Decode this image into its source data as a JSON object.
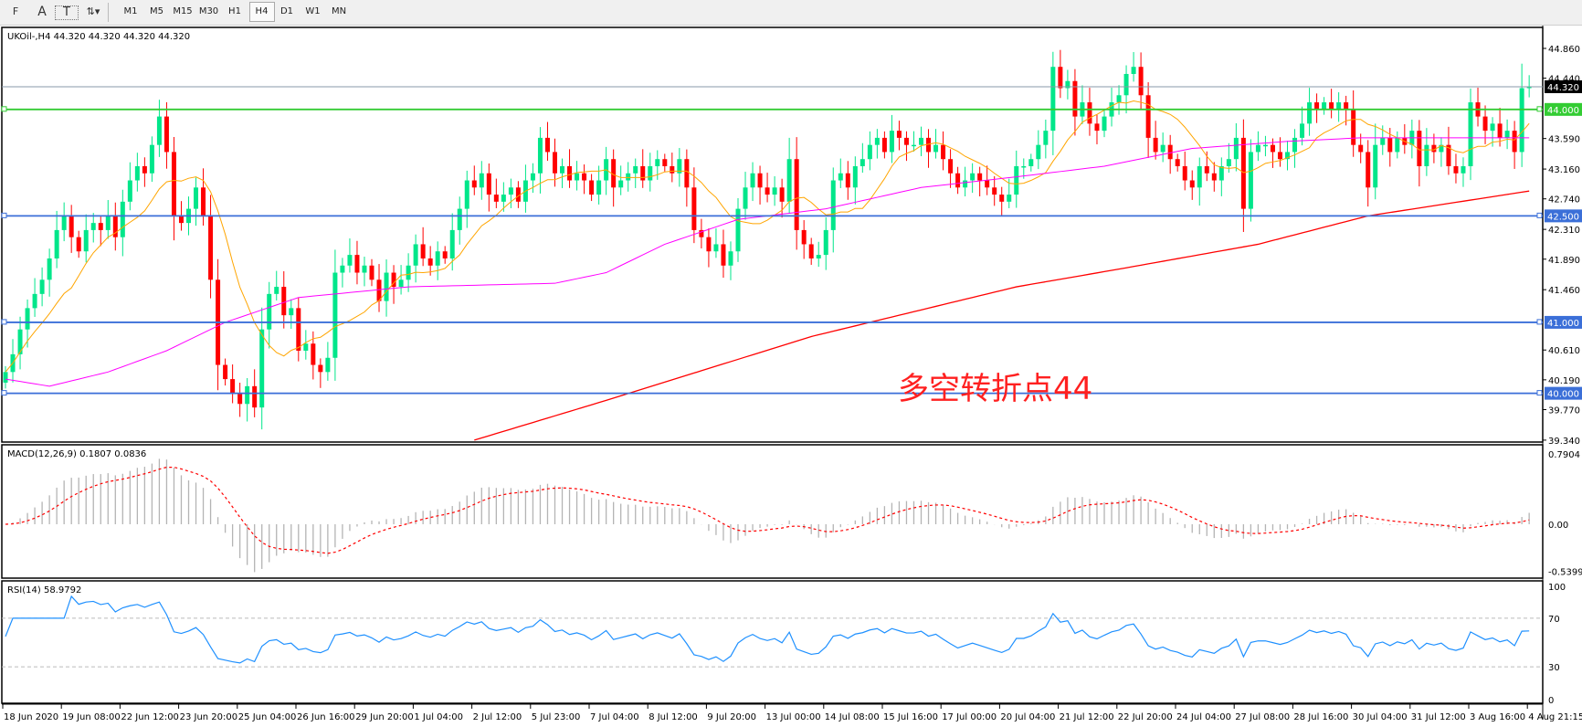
{
  "toolbar": {
    "tools": [
      {
        "icon": "grid-f-icon",
        "label": "F"
      },
      {
        "icon": "text-icon",
        "label": "A"
      },
      {
        "icon": "text-label-icon",
        "label": "T"
      },
      {
        "icon": "arrows-icon",
        "label": "▾"
      }
    ],
    "timeframes": [
      "M1",
      "M5",
      "M15",
      "M30",
      "H1",
      "H4",
      "D1",
      "W1",
      "MN"
    ],
    "active_timeframe": "H4"
  },
  "main": {
    "title": "UKOil-,H4  44.320 44.320 44.320 44.320",
    "symbol": "UKOil-",
    "period": "H4",
    "price_axis_labels": [
      "44.860",
      "44.440",
      "43.590",
      "43.160",
      "42.740",
      "42.310",
      "41.890",
      "41.460",
      "40.610",
      "40.190",
      "39.770",
      "39.340"
    ],
    "bid": {
      "value": 44.32,
      "label": "44.320",
      "color": "#000000"
    },
    "levels": [
      {
        "value": 44.0,
        "label": "44.000",
        "color": "#33cc33"
      },
      {
        "value": 42.5,
        "label": "42.500",
        "color": "#3b6fd8"
      },
      {
        "value": 41.0,
        "label": "41.000",
        "color": "#3b6fd8"
      },
      {
        "value": 40.0,
        "label": "40.000",
        "color": "#3b6fd8"
      }
    ],
    "annotation": "多空转折点44",
    "annotation_color": "#ff2020",
    "colors": {
      "bull": "#00e68a",
      "bear": "#ff0000",
      "ma_fast": "#ffa500",
      "ma_mid": "#ff00ff",
      "ma_slow": "#ff0000"
    }
  },
  "chart_data": {
    "type": "candlestick",
    "ylim": [
      39.34,
      44.86
    ],
    "closes": [
      40.3,
      40.55,
      40.9,
      41.2,
      41.4,
      41.6,
      41.9,
      42.3,
      42.5,
      42.2,
      42.0,
      42.3,
      42.4,
      42.3,
      42.5,
      42.2,
      42.7,
      43.0,
      43.2,
      43.1,
      43.5,
      43.9,
      43.4,
      42.5,
      42.4,
      42.6,
      42.9,
      42.5,
      41.6,
      40.4,
      40.2,
      40.0,
      39.85,
      40.1,
      39.8,
      40.9,
      41.4,
      41.5,
      41.1,
      41.2,
      40.6,
      40.7,
      40.4,
      40.3,
      40.5,
      41.7,
      41.8,
      41.95,
      41.7,
      41.8,
      41.6,
      41.3,
      41.7,
      41.5,
      41.6,
      41.8,
      42.1,
      41.9,
      41.8,
      42.0,
      41.9,
      42.3,
      42.6,
      43.0,
      42.9,
      43.1,
      42.8,
      42.7,
      42.8,
      42.9,
      42.7,
      43.0,
      43.1,
      43.6,
      43.4,
      43.1,
      43.2,
      43.0,
      43.1,
      43.0,
      42.8,
      43.0,
      43.3,
      42.9,
      43.0,
      43.1,
      43.2,
      43.0,
      43.2,
      43.3,
      43.2,
      43.1,
      43.3,
      42.9,
      42.3,
      42.2,
      42.0,
      42.1,
      41.8,
      42.0,
      42.6,
      42.9,
      43.1,
      42.9,
      42.8,
      42.9,
      42.7,
      43.3,
      42.3,
      42.1,
      41.9,
      41.95,
      42.3,
      43.0,
      43.1,
      42.9,
      43.2,
      43.3,
      43.5,
      43.6,
      43.4,
      43.7,
      43.6,
      43.5,
      43.5,
      43.6,
      43.4,
      43.5,
      43.3,
      43.1,
      42.9,
      43.0,
      43.1,
      43.0,
      42.9,
      42.8,
      42.7,
      42.8,
      43.2,
      43.2,
      43.3,
      43.5,
      43.7,
      44.6,
      44.3,
      44.4,
      43.9,
      44.1,
      43.8,
      43.7,
      43.9,
      44.1,
      44.2,
      44.5,
      44.6,
      44.2,
      43.6,
      43.4,
      43.5,
      43.3,
      43.2,
      43.0,
      42.9,
      43.2,
      43.1,
      43.0,
      43.2,
      43.3,
      43.6,
      42.6,
      43.4,
      43.5,
      43.5,
      43.4,
      43.3,
      43.4,
      43.6,
      43.8,
      44.1,
      44.0,
      44.1,
      44.0,
      44.1,
      44.0,
      43.5,
      43.4,
      42.9,
      43.5,
      43.6,
      43.4,
      43.6,
      43.5,
      43.7,
      43.2,
      43.5,
      43.4,
      43.5,
      43.2,
      43.1,
      43.2,
      44.1,
      43.9,
      43.7,
      43.8,
      43.6,
      43.7,
      43.4,
      44.3,
      44.32
    ],
    "ma_fast_period": 10,
    "ma_mid": [
      [
        0,
        40.2
      ],
      [
        6,
        40.1
      ],
      [
        14,
        40.3
      ],
      [
        22,
        40.6
      ],
      [
        30,
        41.0
      ],
      [
        40,
        41.35
      ],
      [
        55,
        41.5
      ],
      [
        75,
        41.55
      ],
      [
        82,
        41.7
      ],
      [
        90,
        42.1
      ],
      [
        100,
        42.45
      ],
      [
        112,
        42.6
      ],
      [
        125,
        42.9
      ],
      [
        138,
        43.05
      ],
      [
        150,
        43.2
      ],
      [
        162,
        43.45
      ],
      [
        175,
        43.55
      ],
      [
        185,
        43.6
      ],
      [
        208,
        43.6
      ]
    ],
    "ma_slow": [
      [
        64,
        39.34
      ],
      [
        82,
        39.9
      ],
      [
        110,
        40.8
      ],
      [
        138,
        41.5
      ],
      [
        152,
        41.75
      ],
      [
        171,
        42.1
      ],
      [
        186,
        42.5
      ],
      [
        208,
        42.85
      ]
    ],
    "time_labels": [
      "18 Jun 2020",
      "19 Jun 08:00",
      "22 Jun 12:00",
      "23 Jun 20:00",
      "25 Jun 04:00",
      "26 Jun 16:00",
      "29 Jun 20:00",
      "1 Jul 04:00",
      "2 Jul 12:00",
      "5 Jul 23:00",
      "7 Jul 04:00",
      "8 Jul 12:00",
      "9 Jul 20:00",
      "13 Jul 00:00",
      "14 Jul 08:00",
      "15 Jul 16:00",
      "17 Jul 00:00",
      "20 Jul 04:00",
      "21 Jul 12:00",
      "22 Jul 20:00",
      "24 Jul 04:00",
      "27 Jul 08:00",
      "28 Jul 16:00",
      "30 Jul 04:00",
      "31 Jul 12:00",
      "3 Aug 16:00",
      "4 Aug 21:15"
    ]
  },
  "macd": {
    "title": "MACD(12,26,9) 0.1807 0.0836",
    "axis_labels": [
      "0.7904",
      "0.00",
      "-0.5399"
    ],
    "ylim": [
      -0.5399,
      0.7904
    ],
    "colors": {
      "histogram": "#b4b4b4",
      "signal": "#ff0000"
    }
  },
  "rsi": {
    "title": "RSI(14) 58.9792",
    "axis_labels": [
      "100",
      "70",
      "30",
      "0"
    ],
    "levels": [
      70,
      30
    ],
    "color": "#1e90ff"
  }
}
